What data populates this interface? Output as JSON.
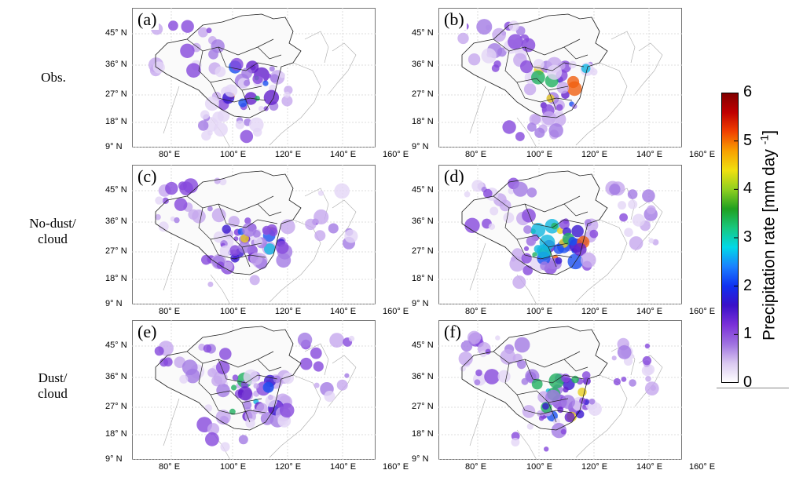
{
  "rows": [
    {
      "label_lines": [
        "Obs."
      ]
    },
    {
      "label_lines": [
        "No-dust/",
        "cloud"
      ]
    },
    {
      "label_lines": [
        "Dust/",
        "cloud"
      ]
    }
  ],
  "panels": [
    {
      "tag": "(a)",
      "type": "obs",
      "intensity": 0.55
    },
    {
      "tag": "(b)",
      "type": "obs",
      "intensity": 0.85
    },
    {
      "tag": "(c)",
      "type": "sim",
      "intensity": 0.55
    },
    {
      "tag": "(d)",
      "type": "sim",
      "intensity": 0.9
    },
    {
      "tag": "(e)",
      "type": "sim",
      "intensity": 0.55
    },
    {
      "tag": "(f)",
      "type": "sim",
      "intensity": 0.9
    }
  ],
  "lat_labels": [
    "45° N",
    "36° N",
    "27° N",
    "18° N",
    "9° N"
  ],
  "lon_labels": [
    "80° E",
    "100° E",
    "120° E",
    "140° E",
    "160° E"
  ],
  "colorbar": {
    "title": "Precipitation rate [mm day",
    "title_exp": "-1",
    "title_close": "]",
    "ticks": [
      "0",
      "1",
      "2",
      "3",
      "4",
      "5",
      "6"
    ],
    "range": [
      0,
      6
    ],
    "colors": [
      "#ffffff",
      "#d9c8f0",
      "#9f72e0",
      "#7a30d8",
      "#3a10c8",
      "#1030f0",
      "#1a80ff",
      "#00d8e8",
      "#18c880",
      "#20a020",
      "#90d020",
      "#f0e010",
      "#f8a000",
      "#f04000",
      "#c00000",
      "#800000"
    ]
  }
}
